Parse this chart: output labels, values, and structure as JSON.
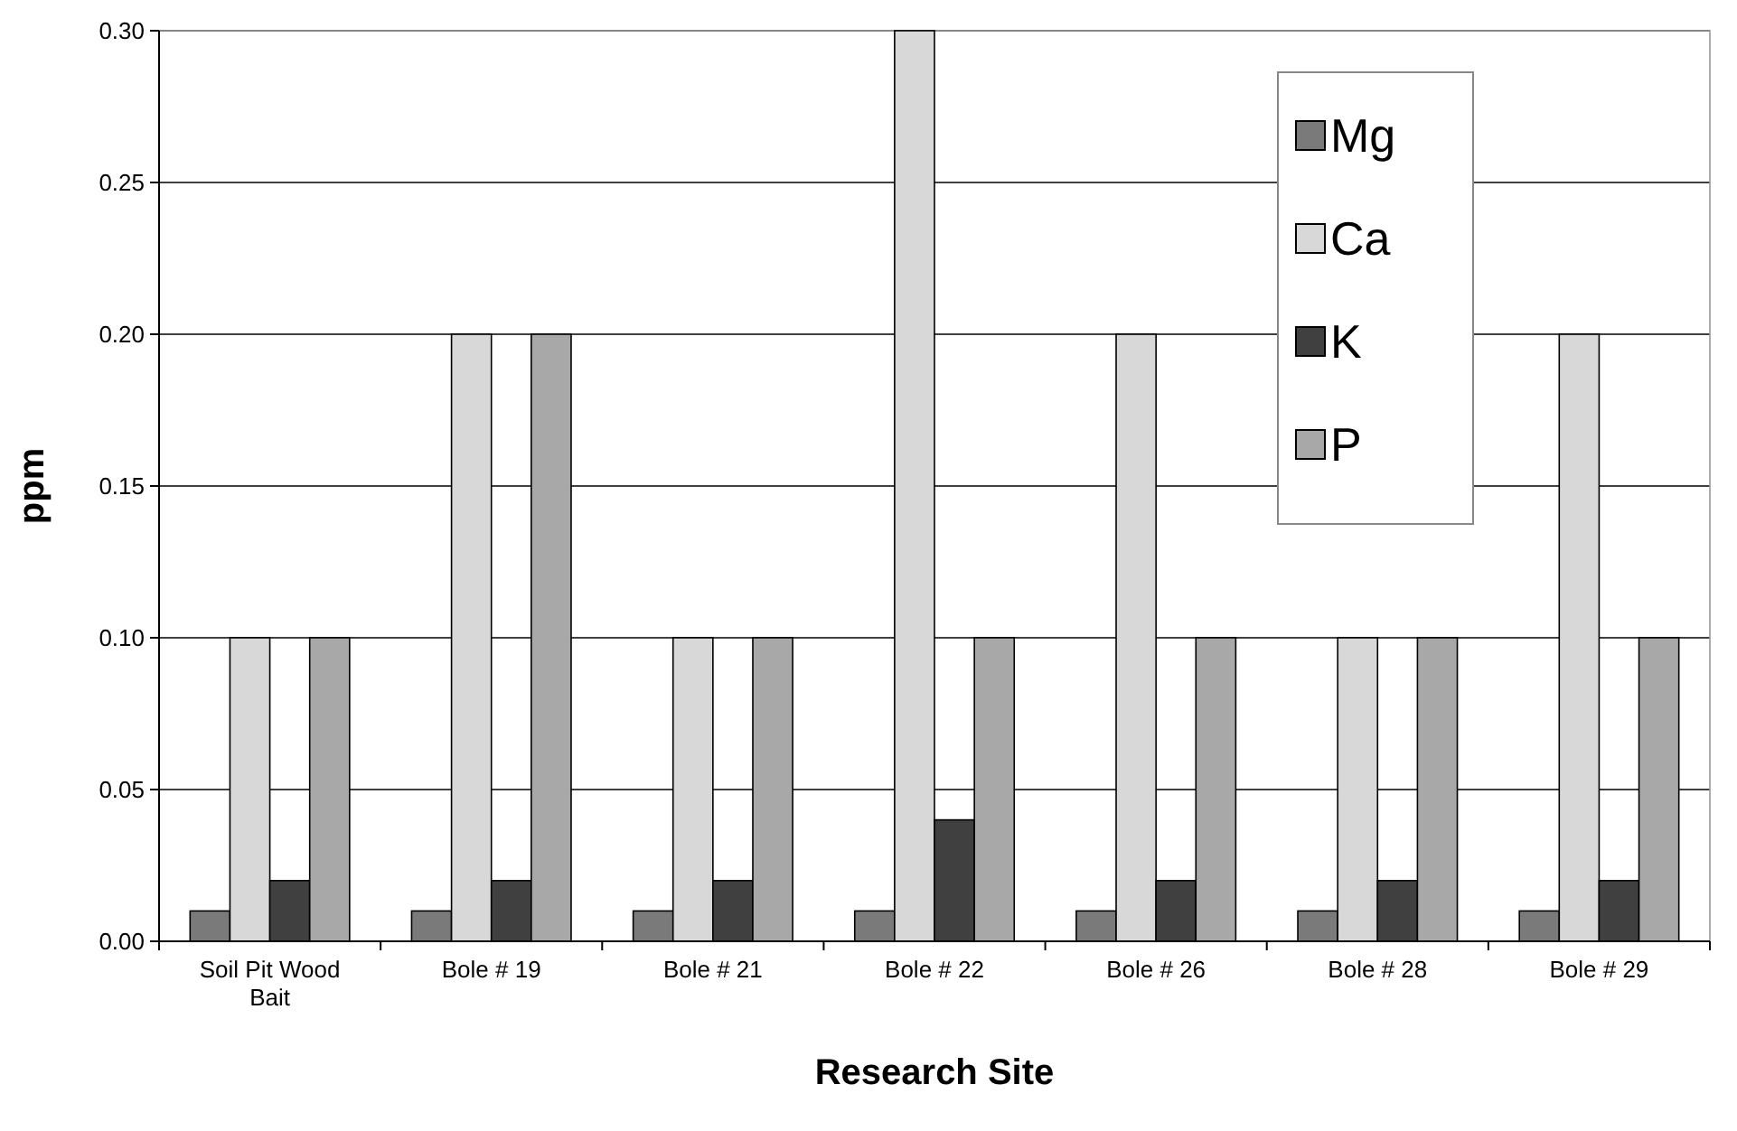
{
  "chart_data": {
    "type": "bar",
    "xlabel": "Research Site",
    "ylabel": "ppm",
    "categories": [
      "Soil Pit Wood Bait",
      "Bole # 19",
      "Bole # 21",
      "Bole # 22",
      "Bole # 26",
      "Bole # 28",
      "Bole # 29"
    ],
    "series": [
      {
        "name": "Mg",
        "color": "#7a7a7a",
        "values": [
          0.01,
          0.01,
          0.01,
          0.01,
          0.01,
          0.01,
          0.01
        ]
      },
      {
        "name": "Ca",
        "color": "#d8d8d8",
        "values": [
          0.1,
          0.2,
          0.1,
          0.3,
          0.2,
          0.1,
          0.2
        ]
      },
      {
        "name": "K",
        "color": "#404040",
        "values": [
          0.02,
          0.02,
          0.02,
          0.04,
          0.02,
          0.02,
          0.02
        ]
      },
      {
        "name": "P",
        "color": "#a8a8a8",
        "values": [
          0.1,
          0.2,
          0.1,
          0.1,
          0.1,
          0.1,
          0.1
        ]
      }
    ],
    "ylim": [
      0,
      0.3
    ],
    "yticks": [
      {
        "value": 0,
        "label": "0.00"
      },
      {
        "value": 0.05,
        "label": "0.05"
      },
      {
        "value": 0.1,
        "label": "0.10"
      },
      {
        "value": 0.15,
        "label": "0.15"
      },
      {
        "value": 0.2,
        "label": "0.20"
      },
      {
        "value": 0.25,
        "label": "0.25"
      },
      {
        "value": 0.3,
        "label": "0.30"
      }
    ],
    "grid": "y",
    "legend": "top right"
  }
}
